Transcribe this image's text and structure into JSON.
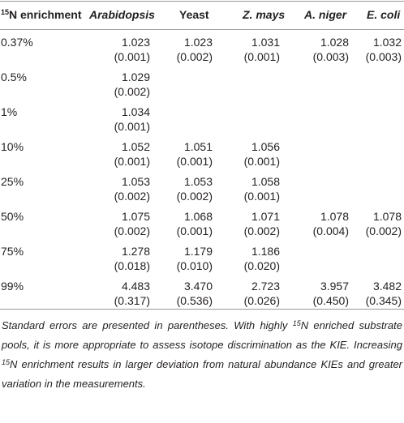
{
  "table": {
    "header": {
      "label_sup": "15",
      "label": "N enrichment",
      "columns": [
        {
          "text": "Arabidopsis",
          "italic": true
        },
        {
          "text": "Yeast",
          "italic": false
        },
        {
          "text": "Z. mays",
          "italic": true
        },
        {
          "text": "A. niger",
          "italic": true
        },
        {
          "text": "E. coli",
          "italic": true
        }
      ]
    },
    "rows": [
      {
        "label": "0.37%",
        "cells": [
          {
            "value": "1.023",
            "error": "(0.001)"
          },
          {
            "value": "1.023",
            "error": "(0.002)"
          },
          {
            "value": "1.031",
            "error": "(0.001)"
          },
          {
            "value": "1.028",
            "error": "(0.003)"
          },
          {
            "value": "1.032",
            "error": "(0.003)"
          }
        ]
      },
      {
        "label": "0.5%",
        "cells": [
          {
            "value": "1.029",
            "error": "(0.002)"
          },
          null,
          null,
          null,
          null
        ]
      },
      {
        "label": "1%",
        "cells": [
          {
            "value": "1.034",
            "error": "(0.001)"
          },
          null,
          null,
          null,
          null
        ]
      },
      {
        "label": "10%",
        "cells": [
          {
            "value": "1.052",
            "error": "(0.001)"
          },
          {
            "value": "1.051",
            "error": "(0.001)"
          },
          {
            "value": "1.056",
            "error": "(0.001)"
          },
          null,
          null
        ]
      },
      {
        "label": "25%",
        "cells": [
          {
            "value": "1.053",
            "error": "(0.002)"
          },
          {
            "value": "1.053",
            "error": "(0.002)"
          },
          {
            "value": "1.058",
            "error": "(0.001)"
          },
          null,
          null
        ]
      },
      {
        "label": "50%",
        "cells": [
          {
            "value": "1.075",
            "error": "(0.002)"
          },
          {
            "value": "1.068",
            "error": "(0.001)"
          },
          {
            "value": "1.071",
            "error": "(0.002)"
          },
          {
            "value": "1.078",
            "error": "(0.004)"
          },
          {
            "value": "1.078",
            "error": "(0.002)"
          }
        ]
      },
      {
        "label": "75%",
        "cells": [
          {
            "value": "1.278",
            "error": "(0.018)"
          },
          {
            "value": "1.179",
            "error": "(0.010)"
          },
          {
            "value": "1.186",
            "error": "(0.020)"
          },
          null,
          null
        ]
      },
      {
        "label": "99%",
        "cells": [
          {
            "value": "4.483",
            "error": "(0.317)"
          },
          {
            "value": "3.470",
            "error": "(0.536)"
          },
          {
            "value": "2.723",
            "error": "(0.026)"
          },
          {
            "value": "3.957",
            "error": "(0.450)"
          },
          {
            "value": "3.482",
            "error": "(0.345)"
          }
        ]
      }
    ]
  },
  "footnote": {
    "segments": [
      "Standard errors are presented in parentheses. With highly ",
      "15",
      "N enriched substrate pools, it is more appropriate to assess isotope discrimination as the KIE. Increasing ",
      "15",
      "N enrichment results in larger deviation from natural abundance KIEs and greater variation in the measurements."
    ]
  }
}
